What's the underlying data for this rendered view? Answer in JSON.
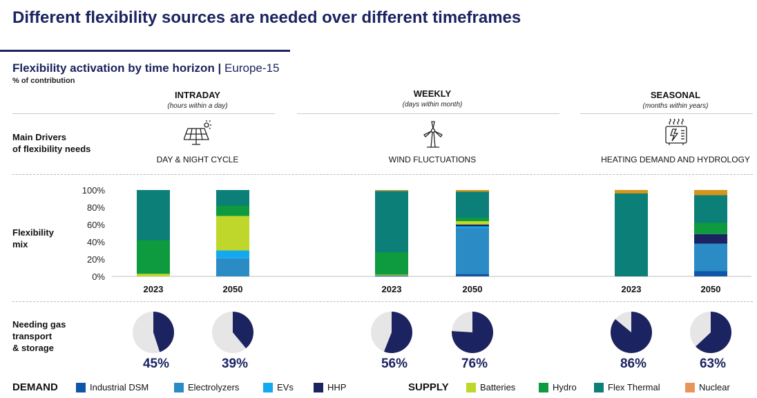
{
  "title": "Different flexibility sources are needed over different timeframes",
  "subtitle_bold": "Flexibility activation by time horizon |",
  "subtitle_region": "Europe-15",
  "subtitle_note": "% of contribution",
  "row_labels": {
    "drivers": [
      "Main Drivers",
      "of flexibility needs"
    ],
    "mix": [
      "Flexibility",
      "mix"
    ],
    "gas": [
      "Needing gas",
      "transport",
      "& storage"
    ]
  },
  "horizons": [
    {
      "title": "INTRADAY",
      "sub": "(hours within a day)",
      "driver": "DAY & NIGHT CYCLE",
      "icon": "solar-panel-icon"
    },
    {
      "title": "WEEKLY",
      "sub": "(days within month)",
      "driver": "WIND FLUCTUATIONS",
      "icon": "wind-turbine-icon"
    },
    {
      "title": "SEASONAL",
      "sub": "(months within years)",
      "driver": "HEATING DEMAND AND HYDROLOGY",
      "icon": "heater-icon"
    }
  ],
  "legend": {
    "demand_label": "DEMAND",
    "supply_label": "SUPPLY",
    "demand": [
      {
        "name": "Industrial DSM",
        "color": "#0f56a8"
      },
      {
        "name": "Electrolyzers",
        "color": "#2b8bc4"
      },
      {
        "name": "EVs",
        "color": "#12a9f0"
      },
      {
        "name": "HHP",
        "color": "#1b2360"
      }
    ],
    "supply": [
      {
        "name": "Batteries",
        "color": "#bfd62a"
      },
      {
        "name": "Hydro",
        "color": "#0e9a3e"
      },
      {
        "name": "Flex Thermal",
        "color": "#0b7f78"
      },
      {
        "name": "Nuclear",
        "color": "#e8955a"
      }
    ]
  },
  "chart_data": {
    "type": "bar",
    "stacked": true,
    "yticks": [
      "0%",
      "20%",
      "40%",
      "60%",
      "80%",
      "100%"
    ],
    "ylim": [
      0,
      100
    ],
    "series_order": [
      "Industrial DSM",
      "Electrolyzers",
      "EVs",
      "HHP",
      "Batteries",
      "Hydro",
      "Flex Thermal",
      "Nuclear"
    ],
    "colors": {
      "Industrial DSM": "#0f56a8",
      "Electrolyzers": "#2b8bc4",
      "EVs": "#12a9f0",
      "HHP": "#1b2360",
      "Batteries": "#bfd62a",
      "Hydro": "#0e9a3e",
      "Flex Thermal": "#0b7f78",
      "Nuclear": "#d4951a"
    },
    "bars": [
      {
        "horizon": "INTRADAY",
        "category": "2023",
        "values": {
          "Industrial DSM": 0,
          "Electrolyzers": 0,
          "EVs": 0,
          "HHP": 0,
          "Batteries": 3,
          "Hydro": 39,
          "Flex Thermal": 58,
          "Nuclear": 0
        },
        "gas_pct": 45,
        "gas_label": "45%"
      },
      {
        "horizon": "INTRADAY",
        "category": "2050",
        "values": {
          "Industrial DSM": 0,
          "Electrolyzers": 21,
          "EVs": 9,
          "HHP": 0,
          "Batteries": 40,
          "Hydro": 12,
          "Flex Thermal": 18,
          "Nuclear": 0
        },
        "gas_pct": 39,
        "gas_label": "39%"
      },
      {
        "horizon": "WEEKLY",
        "category": "2023",
        "values": {
          "Industrial DSM": 1,
          "Electrolyzers": 0,
          "EVs": 0,
          "HHP": 0,
          "Batteries": 1,
          "Hydro": 26,
          "Flex Thermal": 71,
          "Nuclear": 1
        },
        "gas_pct": 56,
        "gas_label": "56%"
      },
      {
        "horizon": "WEEKLY",
        "category": "2050",
        "values": {
          "Industrial DSM": 3,
          "Electrolyzers": 53,
          "EVs": 2,
          "HHP": 2,
          "Batteries": 4,
          "Hydro": 4,
          "Flex Thermal": 30,
          "Nuclear": 2
        },
        "gas_pct": 76,
        "gas_label": "76%"
      },
      {
        "horizon": "SEASONAL",
        "category": "2023",
        "values": {
          "Industrial DSM": 0,
          "Electrolyzers": 0,
          "EVs": 0,
          "HHP": 0,
          "Batteries": 0,
          "Hydro": 0,
          "Flex Thermal": 96,
          "Nuclear": 4
        },
        "gas_pct": 86,
        "gas_label": "86%"
      },
      {
        "horizon": "SEASONAL",
        "category": "2050",
        "values": {
          "Industrial DSM": 6,
          "Electrolyzers": 32,
          "EVs": 0,
          "HHP": 11,
          "Batteries": 0,
          "Hydro": 13,
          "Flex Thermal": 32,
          "Nuclear": 6
        },
        "gas_pct": 63,
        "gas_label": "63%"
      }
    ]
  }
}
